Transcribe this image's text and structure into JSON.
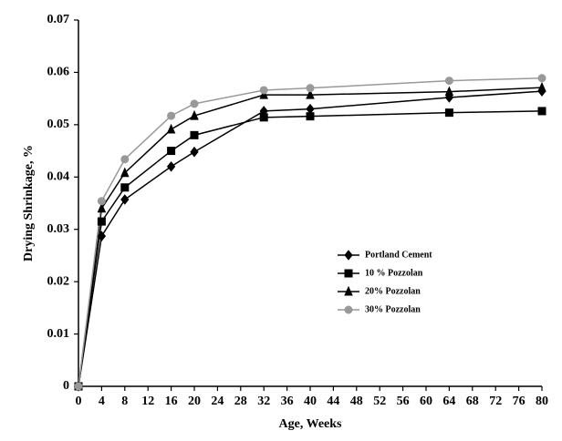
{
  "chart_data": {
    "type": "line",
    "xlabel": "Age, Weeks",
    "ylabel": "Drying Shrinkage, %",
    "x": [
      0,
      4,
      8,
      16,
      20,
      32,
      40,
      64,
      80
    ],
    "series": [
      {
        "name": "Portland Cement",
        "color": "#000000",
        "marker": "diamond",
        "values": [
          0,
          0.0287,
          0.0357,
          0.042,
          0.0448,
          0.0526,
          0.053,
          0.0552,
          0.0564
        ]
      },
      {
        "name": "10 % Pozzolan",
        "color": "#000000",
        "marker": "square",
        "values": [
          0,
          0.0315,
          0.038,
          0.045,
          0.048,
          0.0514,
          0.0516,
          0.0523,
          0.0526
        ]
      },
      {
        "name": "20% Pozzolan",
        "color": "#000000",
        "marker": "triangle",
        "values": [
          0,
          0.034,
          0.0408,
          0.0491,
          0.0517,
          0.0557,
          0.0557,
          0.0563,
          0.0571
        ]
      },
      {
        "name": "30% Pozzolan",
        "color": "#999999",
        "marker": "circle",
        "values": [
          0,
          0.0354,
          0.0434,
          0.0517,
          0.054,
          0.0566,
          0.057,
          0.0584,
          0.0589
        ]
      }
    ],
    "xlim": [
      0,
      80
    ],
    "xticks": [
      0,
      4,
      8,
      12,
      16,
      20,
      24,
      28,
      32,
      36,
      40,
      44,
      48,
      52,
      56,
      60,
      64,
      68,
      72,
      76,
      80
    ],
    "ylim": [
      0,
      0.07
    ],
    "yticks": [
      0,
      0.01,
      0.02,
      0.03,
      0.04,
      0.05,
      0.06,
      0.07
    ],
    "grid": false,
    "legend": "inside-right"
  }
}
